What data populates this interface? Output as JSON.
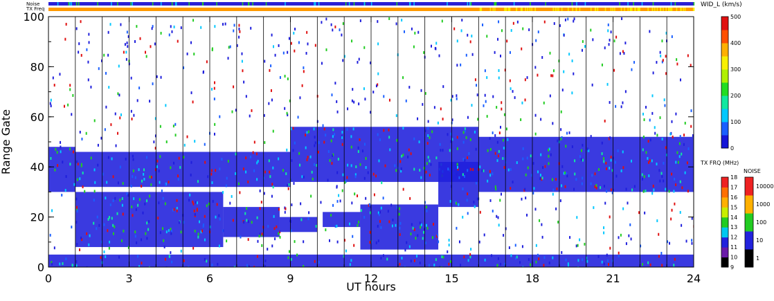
{
  "chart_data": {
    "type": "heatmap",
    "xlabel": "UT hours",
    "ylabel": "Range Gate",
    "xlim": [
      0,
      24
    ],
    "ylim": [
      0,
      100
    ],
    "xticks": [
      "0",
      "3",
      "6",
      "9",
      "12",
      "15",
      "18",
      "21",
      "24"
    ],
    "yticks": [
      "0",
      "20",
      "40",
      "60",
      "80",
      "100"
    ],
    "top_strips": [
      {
        "label": "Noise",
        "dominant_color": "#2a1fd6"
      },
      {
        "label": "TX Freq",
        "dominant_color": "#ff9900"
      }
    ],
    "colorbars": [
      {
        "title": "WID_L (km/s)",
        "ticks": [
          "0",
          "100",
          "200",
          "300",
          "400",
          "500"
        ],
        "colors": [
          "#1515d8",
          "#1a5fff",
          "#00c8ff",
          "#10e8a0",
          "#22dd22",
          "#b0f000",
          "#f8f000",
          "#ffb000",
          "#ff5000",
          "#e01010"
        ]
      },
      {
        "title": "TX FRQ (MHz)",
        "ticks": [
          "9",
          "10",
          "11",
          "12",
          "13",
          "14",
          "15",
          "16",
          "17",
          "18"
        ],
        "colors": [
          "#000000",
          "#6a1aa8",
          "#2222dd",
          "#00c8f0",
          "#22cc22",
          "#c8ee00",
          "#ffb000",
          "#ff7000",
          "#ee2222"
        ]
      },
      {
        "title": "NOISE",
        "ticks": [
          "1",
          "10",
          "100",
          "1000",
          "10000"
        ],
        "colors": [
          "#000000",
          "#2222dd",
          "#22cc22",
          "#ffb000",
          "#ee2222"
        ]
      }
    ],
    "vertical_markers_ut": [
      1,
      2,
      3,
      4,
      5,
      6,
      7,
      8,
      9,
      10,
      11,
      12,
      13,
      14,
      15,
      16,
      17,
      18,
      19,
      20,
      21,
      22,
      23
    ],
    "echo_regions": [
      {
        "ut": [
          1.0,
          6.5
        ],
        "gate": [
          8,
          30
        ],
        "color": "#1f1fdc"
      },
      {
        "ut": [
          6.5,
          8.6
        ],
        "gate": [
          12,
          24
        ],
        "color": "#1f1fdc"
      },
      {
        "ut": [
          8.6,
          10.0
        ],
        "gate": [
          14,
          20
        ],
        "color": "#1f1fdc"
      },
      {
        "ut": [
          10.2,
          11.6
        ],
        "gate": [
          16,
          22
        ],
        "color": "#1f1fdc"
      },
      {
        "ut": [
          11.6,
          14.5
        ],
        "gate": [
          7,
          25
        ],
        "color": "#1f1fdc"
      },
      {
        "ut": [
          14.5,
          16.0
        ],
        "gate": [
          24,
          42
        ],
        "color": "#1f1fdc"
      },
      {
        "ut": [
          0.0,
          1.0
        ],
        "gate": [
          30,
          48
        ],
        "color": "#1f1fdc"
      },
      {
        "ut": [
          1.0,
          9.0
        ],
        "gate": [
          32,
          46
        ],
        "color": "#1f1fdc"
      },
      {
        "ut": [
          9.0,
          16.0
        ],
        "gate": [
          34,
          56
        ],
        "color": "#1f1fdc"
      },
      {
        "ut": [
          16.0,
          24.0
        ],
        "gate": [
          30,
          52
        ],
        "color": "#1f1fdc"
      },
      {
        "ut": [
          0.0,
          24.0
        ],
        "gate": [
          0,
          5
        ],
        "color": "#1f1fdc"
      }
    ]
  }
}
